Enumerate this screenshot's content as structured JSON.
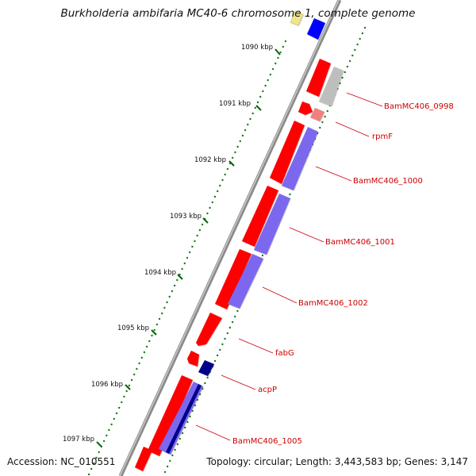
{
  "title": "Burkholderia ambifaria MC40-6 chromosome 1, complete genome",
  "footer": {
    "accession": "Accession: NC_010551",
    "summary": "Topology: circular; Length: 3,443,583 bp; Genes: 3,147"
  },
  "ticks": [
    "1090 kbp",
    "1091 kbp",
    "1092 kbp",
    "1093 kbp",
    "1094 kbp",
    "1095 kbp",
    "1096 kbp",
    "1097 kbp"
  ],
  "genes": [
    "BamMC406_0998",
    "rpmF",
    "BamMC406_1000",
    "BamMC406_1001",
    "BamMC406_1002",
    "fabG",
    "acpP",
    "BamMC406_1005"
  ],
  "colors": {
    "cds": "#ff0000",
    "cds_light": "#f08080",
    "protein": "#7b68ee",
    "protein_dark": "#00008b",
    "other": "#bebebe",
    "top_yellow": "#f0e68c",
    "top_blue": "#0000ff",
    "label": "#cc0000",
    "tick_mark": "#006400",
    "backbone": "#808080"
  }
}
